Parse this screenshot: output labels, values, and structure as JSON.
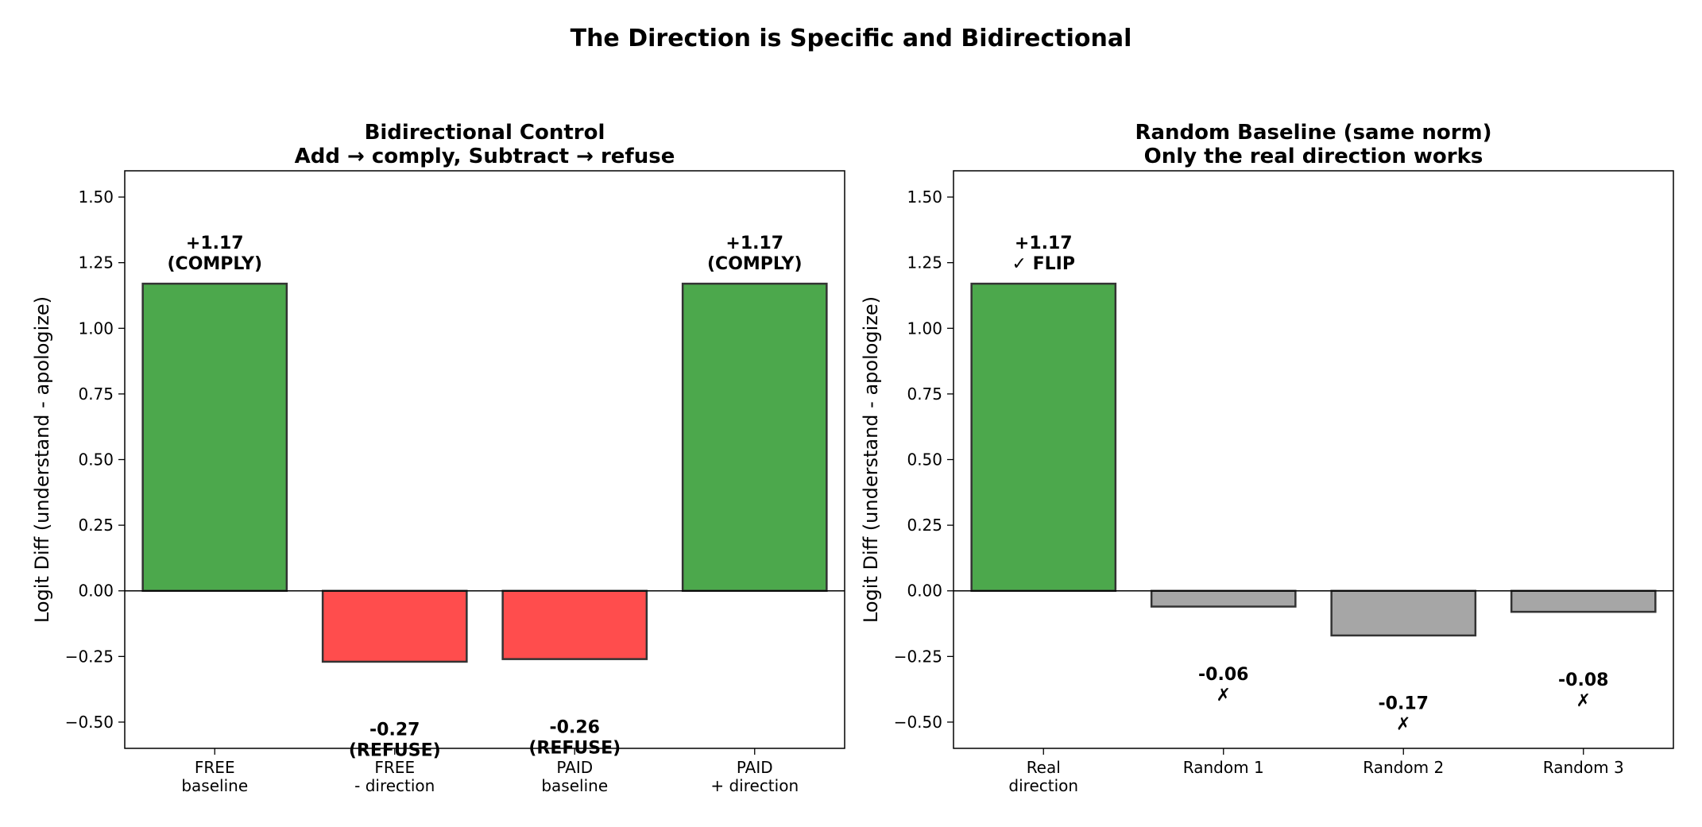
{
  "title": "The Direction is Specific and Bidirectional",
  "colors": {
    "comply": "#4ca84c",
    "refuse": "#ff4d4d",
    "random": "#a6a6a6",
    "edge": "#333333"
  },
  "chart_data": [
    {
      "type": "bar",
      "title": [
        "Bidirectional Control",
        "Add → comply, Subtract → refuse"
      ],
      "ylabel": "Logit Diff (understand - apologize)",
      "xlabel": "",
      "ylim": [
        -0.6,
        1.6
      ],
      "yticks": [
        -0.5,
        -0.25,
        0.0,
        0.25,
        0.5,
        0.75,
        1.0,
        1.25,
        1.5
      ],
      "ytick_labels": [
        "−0.50",
        "−0.25",
        "0.00",
        "0.25",
        "0.50",
        "0.75",
        "1.00",
        "1.25",
        "1.50"
      ],
      "categories": [
        [
          "FREE",
          "baseline"
        ],
        [
          "FREE",
          "- direction"
        ],
        [
          "PAID",
          "baseline"
        ],
        [
          "PAID",
          "+ direction"
        ]
      ],
      "values": [
        1.17,
        -0.27,
        -0.26,
        1.17
      ],
      "bar_colors": [
        "comply",
        "refuse",
        "refuse",
        "comply"
      ],
      "labels": [
        [
          "+1.17",
          "(COMPLY)"
        ],
        [
          "-0.27",
          "(REFUSE)"
        ],
        [
          "-0.26",
          "(REFUSE)"
        ],
        [
          "+1.17",
          "(COMPLY)"
        ]
      ]
    },
    {
      "type": "bar",
      "title": [
        "Random Baseline (same norm)",
        "Only the real direction works"
      ],
      "ylabel": "Logit Diff (understand - apologize)",
      "xlabel": "",
      "ylim": [
        -0.6,
        1.6
      ],
      "yticks": [
        -0.5,
        -0.25,
        0.0,
        0.25,
        0.5,
        0.75,
        1.0,
        1.25,
        1.5
      ],
      "ytick_labels": [
        "−0.50",
        "−0.25",
        "0.00",
        "0.25",
        "0.50",
        "0.75",
        "1.00",
        "1.25",
        "1.50"
      ],
      "categories": [
        [
          "Real",
          "direction"
        ],
        [
          "Random 1"
        ],
        [
          "Random 2"
        ],
        [
          "Random 3"
        ]
      ],
      "values": [
        1.17,
        -0.06,
        -0.17,
        -0.08
      ],
      "bar_colors": [
        "comply",
        "random",
        "random",
        "random"
      ],
      "labels": [
        [
          "+1.17",
          "✓ FLIP"
        ],
        [
          "-0.06",
          "✗"
        ],
        [
          "-0.17",
          "✗"
        ],
        [
          "-0.08",
          "✗"
        ]
      ]
    }
  ]
}
